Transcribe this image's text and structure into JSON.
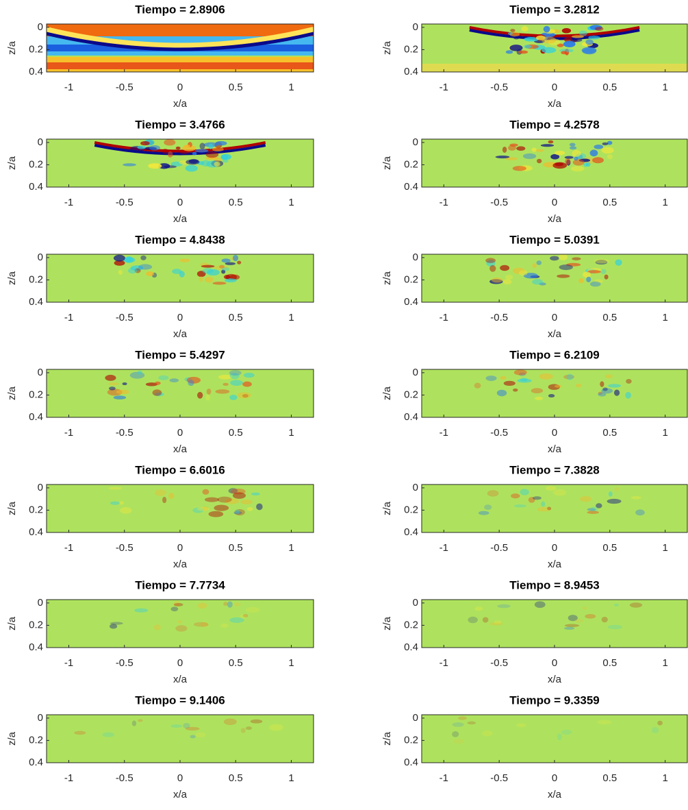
{
  "chart_data": [
    {
      "type": "heatmap",
      "title": "Tiempo = 2.8906",
      "xlabel": "x/a",
      "ylabel": "z/a",
      "xlim": [
        -1.2,
        1.2
      ],
      "ylim": [
        -0.03,
        0.4
      ],
      "xticks": [
        -1,
        -0.5,
        0,
        0.5,
        1
      ],
      "yticks": [
        0,
        0.2,
        0.4
      ],
      "y_reversed": true
    },
    {
      "type": "heatmap",
      "title": "Tiempo = 3.2812",
      "xlabel": "x/a",
      "ylabel": "z/a",
      "xlim": [
        -1.2,
        1.2
      ],
      "ylim": [
        -0.03,
        0.4
      ],
      "xticks": [
        -1,
        -0.5,
        0,
        0.5,
        1
      ],
      "yticks": [
        0,
        0.2,
        0.4
      ],
      "y_reversed": true
    },
    {
      "type": "heatmap",
      "title": "Tiempo = 3.4766",
      "xlabel": "x/a",
      "ylabel": "z/a",
      "xlim": [
        -1.2,
        1.2
      ],
      "ylim": [
        -0.03,
        0.4
      ],
      "xticks": [
        -1,
        -0.5,
        0,
        0.5,
        1
      ],
      "yticks": [
        0,
        0.2,
        0.4
      ],
      "y_reversed": true
    },
    {
      "type": "heatmap",
      "title": "Tiempo = 4.2578",
      "xlabel": "x/a",
      "ylabel": "z/a",
      "xlim": [
        -1.2,
        1.2
      ],
      "ylim": [
        -0.03,
        0.4
      ],
      "xticks": [
        -1,
        -0.5,
        0,
        0.5,
        1
      ],
      "yticks": [
        0,
        0.2,
        0.4
      ],
      "y_reversed": true
    },
    {
      "type": "heatmap",
      "title": "Tiempo = 4.8438",
      "xlabel": "x/a",
      "ylabel": "z/a",
      "xlim": [
        -1.2,
        1.2
      ],
      "ylim": [
        -0.03,
        0.4
      ],
      "xticks": [
        -1,
        -0.5,
        0,
        0.5,
        1
      ],
      "yticks": [
        0,
        0.2,
        0.4
      ],
      "y_reversed": true
    },
    {
      "type": "heatmap",
      "title": "Tiempo = 5.0391",
      "xlabel": "x/a",
      "ylabel": "z/a",
      "xlim": [
        -1.2,
        1.2
      ],
      "ylim": [
        -0.03,
        0.4
      ],
      "xticks": [
        -1,
        -0.5,
        0,
        0.5,
        1
      ],
      "yticks": [
        0,
        0.2,
        0.4
      ],
      "y_reversed": true
    },
    {
      "type": "heatmap",
      "title": "Tiempo = 5.4297",
      "xlabel": "x/a",
      "ylabel": "z/a",
      "xlim": [
        -1.2,
        1.2
      ],
      "ylim": [
        -0.03,
        0.4
      ],
      "xticks": [
        -1,
        -0.5,
        0,
        0.5,
        1
      ],
      "yticks": [
        0,
        0.2,
        0.4
      ],
      "y_reversed": true
    },
    {
      "type": "heatmap",
      "title": "Tiempo = 6.2109",
      "xlabel": "x/a",
      "ylabel": "z/a",
      "xlim": [
        -1.2,
        1.2
      ],
      "ylim": [
        -0.03,
        0.4
      ],
      "xticks": [
        -1,
        -0.5,
        0,
        0.5,
        1
      ],
      "yticks": [
        0,
        0.2,
        0.4
      ],
      "y_reversed": true
    },
    {
      "type": "heatmap",
      "title": "Tiempo = 6.6016",
      "xlabel": "x/a",
      "ylabel": "z/a",
      "xlim": [
        -1.2,
        1.2
      ],
      "ylim": [
        -0.03,
        0.4
      ],
      "xticks": [
        -1,
        -0.5,
        0,
        0.5,
        1
      ],
      "yticks": [
        0,
        0.2,
        0.4
      ],
      "y_reversed": true
    },
    {
      "type": "heatmap",
      "title": "Tiempo = 7.3828",
      "xlabel": "x/a",
      "ylabel": "z/a",
      "xlim": [
        -1.2,
        1.2
      ],
      "ylim": [
        -0.03,
        0.4
      ],
      "xticks": [
        -1,
        -0.5,
        0,
        0.5,
        1
      ],
      "yticks": [
        0,
        0.2,
        0.4
      ],
      "y_reversed": true
    },
    {
      "type": "heatmap",
      "title": "Tiempo = 7.7734",
      "xlabel": "x/a",
      "ylabel": "z/a",
      "xlim": [
        -1.2,
        1.2
      ],
      "ylim": [
        -0.03,
        0.4
      ],
      "xticks": [
        -1,
        -0.5,
        0,
        0.5,
        1
      ],
      "yticks": [
        0,
        0.2,
        0.4
      ],
      "y_reversed": true
    },
    {
      "type": "heatmap",
      "title": "Tiempo = 8.9453",
      "xlabel": "x/a",
      "ylabel": "z/a",
      "xlim": [
        -1.2,
        1.2
      ],
      "ylim": [
        -0.03,
        0.4
      ],
      "xticks": [
        -1,
        -0.5,
        0,
        0.5,
        1
      ],
      "yticks": [
        0,
        0.2,
        0.4
      ],
      "y_reversed": true
    },
    {
      "type": "heatmap",
      "title": "Tiempo = 9.1406",
      "xlabel": "x/a",
      "ylabel": "z/a",
      "xlim": [
        -1.2,
        1.2
      ],
      "ylim": [
        -0.03,
        0.4
      ],
      "xticks": [
        -1,
        -0.5,
        0,
        0.5,
        1
      ],
      "yticks": [
        0,
        0.2,
        0.4
      ],
      "y_reversed": true
    },
    {
      "type": "heatmap",
      "title": "Tiempo = 9.3359",
      "xlabel": "x/a",
      "ylabel": "z/a",
      "xlim": [
        -1.2,
        1.2
      ],
      "ylim": [
        -0.03,
        0.4
      ],
      "xticks": [
        -1,
        -0.5,
        0,
        0.5,
        1
      ],
      "yticks": [
        0,
        0.2,
        0.4
      ],
      "y_reversed": true
    }
  ]
}
